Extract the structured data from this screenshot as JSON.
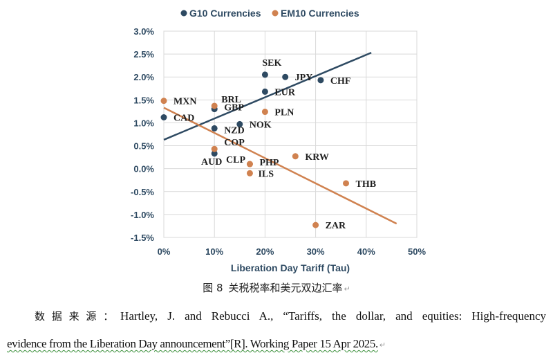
{
  "chart_data": {
    "type": "scatter",
    "legend": [
      {
        "name": "G10 Currencies",
        "color": "#2e4a62"
      },
      {
        "name": "EM10 Currencies",
        "color": "#d08250"
      }
    ],
    "xlabel": "Liberation Day Tariff (Tau)",
    "ylabel": "",
    "xlim": [
      0,
      50
    ],
    "ylim": [
      -1.5,
      3.0
    ],
    "xticks": [
      "0%",
      "10%",
      "20%",
      "30%",
      "40%",
      "50%"
    ],
    "yticks": [
      "3.0%",
      "2.5%",
      "2.0%",
      "1.5%",
      "1.0%",
      "0.5%",
      "0.0%",
      "-0.5%",
      "-1.0%",
      "-1.5%"
    ],
    "series": [
      {
        "name": "G10 Currencies",
        "color": "#2e4a62",
        "points": [
          {
            "label": "SEK",
            "x": 20,
            "y": 2.05
          },
          {
            "label": "JPY",
            "x": 24,
            "y": 2.0
          },
          {
            "label": "CHF",
            "x": 31,
            "y": 1.93
          },
          {
            "label": "EUR",
            "x": 20,
            "y": 1.68
          },
          {
            "label": "GBP",
            "x": 10,
            "y": 1.3
          },
          {
            "label": "CAD",
            "x": 0,
            "y": 1.12
          },
          {
            "label": "NOK",
            "x": 15,
            "y": 0.97
          },
          {
            "label": "NZD",
            "x": 10,
            "y": 0.88
          },
          {
            "label": "AUD",
            "x": 10,
            "y": 0.33
          }
        ],
        "trend": [
          [
            0,
            0.63
          ],
          [
            41,
            2.53
          ]
        ]
      },
      {
        "name": "EM10 Currencies",
        "color": "#d08250",
        "points": [
          {
            "label": "MXN",
            "x": 0,
            "y": 1.48
          },
          {
            "label": "BRL",
            "x": 10,
            "y": 1.37
          },
          {
            "label": "PLN",
            "x": 20,
            "y": 1.24
          },
          {
            "label": "COP",
            "x": 10,
            "y": 0.43
          },
          {
            "label": "KRW",
            "x": 26,
            "y": 0.27
          },
          {
            "label": "CLP",
            "x": 17,
            "y": 0.1
          },
          {
            "label": "PHP",
            "x": 17,
            "y": 0.1
          },
          {
            "label": "ILS",
            "x": 17,
            "y": -0.1
          },
          {
            "label": "THB",
            "x": 36,
            "y": -0.32
          },
          {
            "label": "ZAR",
            "x": 30,
            "y": -1.23
          }
        ],
        "trend": [
          [
            0,
            1.33
          ],
          [
            46,
            -1.2
          ]
        ]
      }
    ]
  },
  "caption": {
    "figure_number": "图 8",
    "text": "关税税率和美元双边汇率"
  },
  "source": {
    "prefix": "数据来源：",
    "line1_text": "Hartley, J. and Rebucci A., “Tariffs, the dollar, and equities: High-frequency",
    "line2_text": "evidence from the Liberation Day announcement”[R]. Working Paper 15 Apr 2025."
  }
}
